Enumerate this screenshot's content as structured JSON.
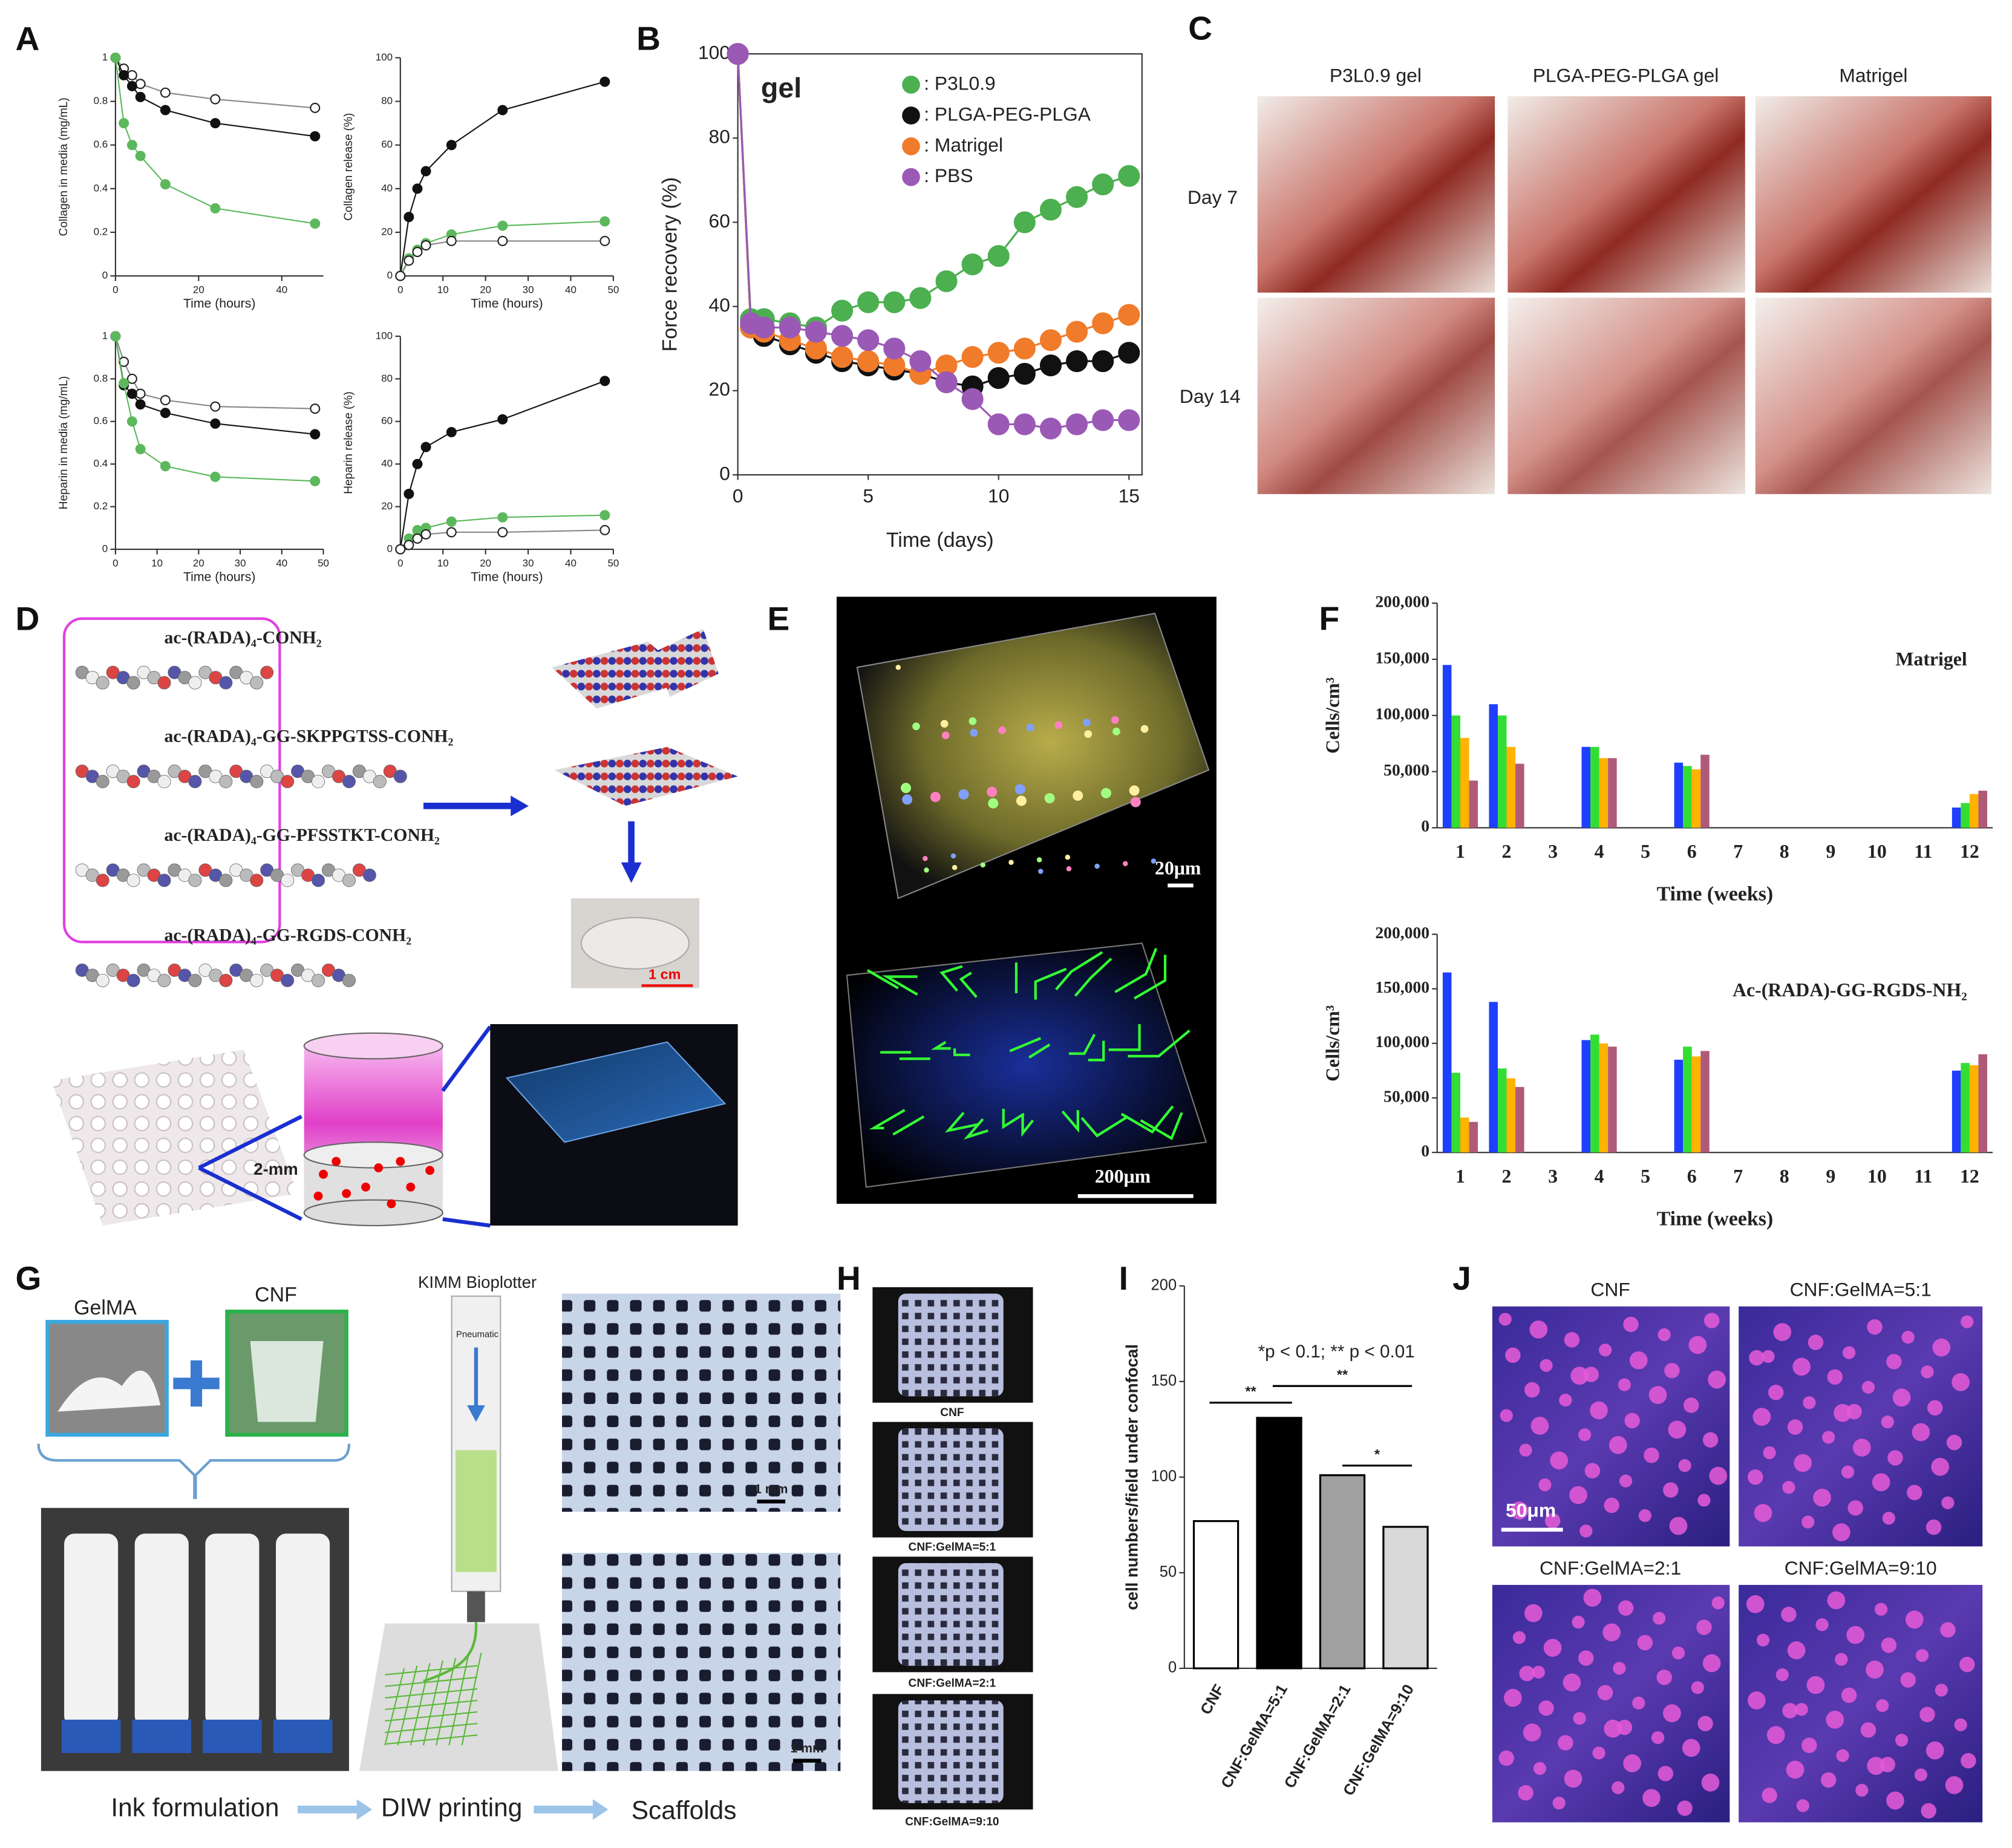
{
  "panels": {
    "labels": [
      "A",
      "B",
      "C",
      "D",
      "E",
      "F",
      "G",
      "H",
      "I",
      "J"
    ],
    "C": {
      "columns": [
        "P3L0.9 gel",
        "PLGA-PEG-PLGA gel",
        "Matrigel"
      ],
      "rows": [
        "Day 7",
        "Day 14"
      ]
    },
    "D": {
      "peptides": [
        "ac-(RADA)₄-CONH₂",
        "ac-(RADA)₄-GG-SKPPGTSS-CONH₂",
        "ac-(RADA)₄-GG-PFSSTKT-CONH₂",
        "ac-(RADA)₄-GG-RGDS-CONH₂"
      ],
      "scale": "1 cm",
      "depth": "2-mm"
    },
    "E": {
      "scales": [
        "20μm",
        "200μm"
      ]
    },
    "G": {
      "inks": [
        "GelMA",
        "CNF"
      ],
      "printer": "KIMM Bioplotter",
      "pressure": "Pneumatic",
      "scales": [
        "1 mm",
        "1 mm"
      ],
      "steps": [
        "Ink formulation",
        "DIW printing",
        "Scaffolds"
      ]
    },
    "H": {
      "captions": [
        "CNF",
        "CNF:GelMA=5:1",
        "CNF:GelMA=2:1",
        "CNF:GelMA=9:10"
      ]
    },
    "J": {
      "captions": [
        "CNF",
        "CNF:GelMA=5:1",
        "CNF:GelMA=2:1",
        "CNF:GelMA=9:10"
      ],
      "scale": "50μm"
    }
  },
  "chart_data": [
    {
      "type": "line",
      "xlabel": "Time (hours)",
      "ylabel": "Collagen in media (mg/mL)",
      "x": [
        0,
        2,
        4,
        6,
        12,
        24,
        48
      ],
      "xlim": [
        0,
        50
      ],
      "ylim": [
        0,
        1
      ],
      "xticks": [
        0,
        20,
        40
      ],
      "yticks": [
        0,
        0.2,
        0.4,
        0.6,
        0.8,
        1
      ],
      "series": [
        {
          "color": "#ffffff",
          "values": [
            1,
            0.95,
            0.92,
            0.88,
            0.84,
            0.81,
            0.77
          ]
        },
        {
          "color": "#111111",
          "values": [
            1,
            0.92,
            0.87,
            0.82,
            0.76,
            0.7,
            0.64
          ]
        },
        {
          "color": "#5cb85c",
          "values": [
            1,
            0.7,
            0.6,
            0.55,
            0.42,
            0.31,
            0.24
          ]
        }
      ]
    },
    {
      "type": "line",
      "xlabel": "Time (hours)",
      "ylabel": "Collagen release (%)",
      "x": [
        0,
        2,
        4,
        6,
        12,
        24,
        48
      ],
      "xlim": [
        0,
        50
      ],
      "ylim": [
        0,
        100
      ],
      "xticks": [
        0,
        10,
        20,
        30,
        40,
        50
      ],
      "yticks": [
        0,
        20,
        40,
        60,
        80,
        100
      ],
      "series": [
        {
          "color": "#111111",
          "values": [
            0,
            27,
            40,
            48,
            60,
            76,
            89
          ]
        },
        {
          "color": "#5cb85c",
          "values": [
            0,
            8,
            12,
            15,
            19,
            23,
            25
          ]
        },
        {
          "color": "#ffffff",
          "values": [
            0,
            7,
            11,
            14,
            16,
            16,
            16
          ]
        }
      ]
    },
    {
      "type": "line",
      "xlabel": "Time (hours)",
      "ylabel": "Heparin in media (mg/mL)",
      "x": [
        0,
        2,
        4,
        6,
        12,
        24,
        48
      ],
      "xlim": [
        0,
        50
      ],
      "ylim": [
        0,
        1
      ],
      "xticks": [
        0,
        10,
        20,
        30,
        40,
        50
      ],
      "yticks": [
        0,
        0.2,
        0.4,
        0.6,
        0.8,
        1
      ],
      "series": [
        {
          "color": "#ffffff",
          "values": [
            1,
            0.88,
            0.8,
            0.73,
            0.7,
            0.67,
            0.66
          ]
        },
        {
          "color": "#111111",
          "values": [
            1,
            0.77,
            0.73,
            0.68,
            0.64,
            0.59,
            0.54
          ]
        },
        {
          "color": "#5cb85c",
          "values": [
            1,
            0.78,
            0.6,
            0.47,
            0.39,
            0.34,
            0.32
          ]
        }
      ]
    },
    {
      "type": "line",
      "xlabel": "Time (hours)",
      "ylabel": "Heparin release (%)",
      "x": [
        0,
        2,
        4,
        6,
        12,
        24,
        48
      ],
      "xlim": [
        0,
        50
      ],
      "ylim": [
        0,
        100
      ],
      "xticks": [
        0,
        10,
        20,
        30,
        40,
        50
      ],
      "yticks": [
        0,
        20,
        40,
        60,
        80,
        100
      ],
      "series": [
        {
          "color": "#111111",
          "values": [
            0,
            26,
            40,
            48,
            55,
            61,
            79
          ]
        },
        {
          "color": "#5cb85c",
          "values": [
            0,
            5,
            9,
            10,
            13,
            15,
            16
          ]
        },
        {
          "color": "#ffffff",
          "values": [
            0,
            2,
            5,
            7,
            8,
            8,
            9
          ]
        }
      ]
    },
    {
      "type": "line",
      "xlabel": "Time (days)",
      "ylabel": "Force recovery (%)",
      "annotation": "gel",
      "legend": "upper right",
      "x": [
        0,
        0.5,
        1,
        2,
        3,
        4,
        5,
        6,
        7,
        8,
        9,
        10,
        11,
        12,
        13,
        14,
        15
      ],
      "xlim": [
        0,
        15.5
      ],
      "ylim": [
        0,
        100
      ],
      "xticks": [
        0,
        5,
        10,
        15
      ],
      "yticks": [
        0,
        20,
        40,
        60,
        80,
        100
      ],
      "series": [
        {
          "name": ": P3L0.9",
          "color": "#4caf50",
          "values": [
            100,
            37,
            37,
            36,
            35,
            39,
            41,
            41,
            42,
            46,
            50,
            52,
            60,
            63,
            66,
            69,
            71
          ]
        },
        {
          "name": ": PLGA-PEG-PLGA",
          "color": "#111111",
          "values": [
            100,
            35,
            33,
            31,
            29,
            27,
            26,
            25,
            24,
            22,
            21,
            23,
            24,
            26,
            27,
            27,
            29
          ]
        },
        {
          "name": ": Matrigel",
          "color": "#f07b2a",
          "values": [
            100,
            35,
            34,
            32,
            30,
            28,
            27,
            26,
            24,
            26,
            28,
            29,
            30,
            32,
            34,
            36,
            38
          ]
        },
        {
          "name": ": PBS",
          "color": "#9b59b6",
          "values": [
            100,
            36,
            35,
            35,
            34,
            33,
            32,
            30,
            27,
            22,
            18,
            12,
            12,
            11,
            12,
            13,
            13
          ]
        }
      ]
    },
    {
      "type": "bar",
      "xlabel": "Time (weeks)",
      "ylabel": "Cells/cm³",
      "annotation": "Matrigel",
      "categories": [
        "1",
        "2",
        "3",
        "4",
        "5",
        "6",
        "7",
        "8",
        "9",
        "10",
        "11",
        "12"
      ],
      "ylim": [
        0,
        200000
      ],
      "yticks": [
        0,
        {
          "value": 50000,
          "label": "50,000"
        },
        {
          "value": 100000,
          "label": "100,000"
        },
        {
          "value": 150000,
          "label": "150,000"
        },
        {
          "value": 200000,
          "label": "200,000"
        }
      ],
      "series": [
        {
          "color": "#1f3fff",
          "values": [
            145000,
            110000,
            null,
            72000,
            null,
            58000,
            null,
            null,
            null,
            null,
            null,
            18000
          ]
        },
        {
          "color": "#33dd33",
          "values": [
            100000,
            100000,
            null,
            72000,
            null,
            55000,
            null,
            null,
            null,
            null,
            null,
            22000
          ]
        },
        {
          "color": "#ffb300",
          "values": [
            80000,
            72000,
            null,
            62000,
            null,
            52000,
            null,
            null,
            null,
            null,
            null,
            30000
          ]
        },
        {
          "color": "#b05a7a",
          "values": [
            42000,
            57000,
            null,
            62000,
            null,
            65000,
            null,
            null,
            null,
            null,
            null,
            33000
          ]
        }
      ]
    },
    {
      "type": "bar",
      "xlabel": "Time (weeks)",
      "ylabel": "Cells/cm³",
      "annotation": "Ac-(RADA)-GG-RGDS-NH₂",
      "categories": [
        "1",
        "2",
        "3",
        "4",
        "5",
        "6",
        "7",
        "8",
        "9",
        "10",
        "11",
        "12"
      ],
      "ylim": [
        0,
        200000
      ],
      "yticks": [
        0,
        {
          "value": 50000,
          "label": "50,000"
        },
        {
          "value": 100000,
          "label": "100,000"
        },
        {
          "value": 150000,
          "label": "150,000"
        },
        {
          "value": 200000,
          "label": "200,000"
        }
      ],
      "series": [
        {
          "color": "#1f3fff",
          "values": [
            165000,
            138000,
            null,
            103000,
            null,
            85000,
            null,
            null,
            null,
            null,
            null,
            75000
          ]
        },
        {
          "color": "#33dd33",
          "values": [
            73000,
            77000,
            null,
            108000,
            null,
            97000,
            null,
            null,
            null,
            null,
            null,
            82000
          ]
        },
        {
          "color": "#ffb300",
          "values": [
            32000,
            68000,
            null,
            100000,
            null,
            88000,
            null,
            null,
            null,
            null,
            null,
            80000
          ]
        },
        {
          "color": "#b05a7a",
          "values": [
            28000,
            60000,
            null,
            97000,
            null,
            93000,
            null,
            null,
            null,
            null,
            null,
            90000
          ]
        }
      ]
    },
    {
      "type": "bar",
      "ylabel": "cell numbers/field under confocal",
      "annotation": "*p < 0.1; ** p < 0.01",
      "significance": [
        "**",
        "**",
        "*"
      ],
      "categories": [
        "CNF",
        "CNF:GelMA=5:1",
        "CNF:GelMA=2:1",
        "CNF:GelMA=9:10"
      ],
      "values": [
        77,
        131,
        101,
        74
      ],
      "colors": [
        "#ffffff",
        "#000000",
        "#a0a0a0",
        "#d9d9d9"
      ],
      "ylim": [
        0,
        200
      ],
      "yticks": [
        0,
        50,
        100,
        150,
        200
      ]
    }
  ]
}
